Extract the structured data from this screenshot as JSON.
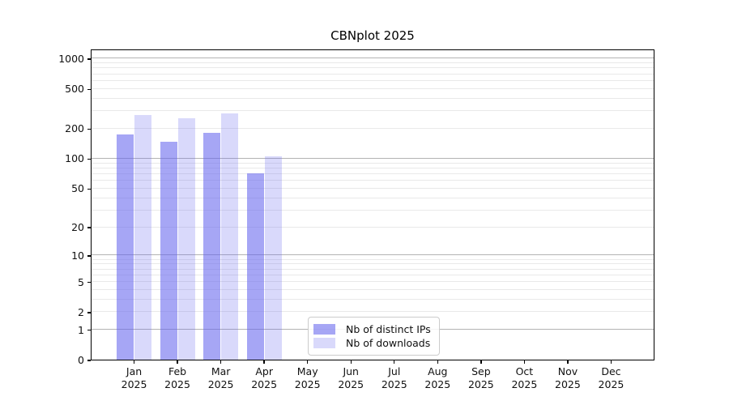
{
  "chart_data": {
    "type": "bar",
    "title": "CBNplot 2025",
    "categories": [
      "Jan",
      "Feb",
      "Mar",
      "Apr",
      "May",
      "Jun",
      "Jul",
      "Aug",
      "Sep",
      "Oct",
      "Nov",
      "Dec"
    ],
    "year_label": "2025",
    "series": [
      {
        "name": "Nb of distinct IPs",
        "color": "rgba(102,102,238,0.58)",
        "values": [
          175,
          148,
          180,
          70,
          null,
          null,
          null,
          null,
          null,
          null,
          null,
          null
        ]
      },
      {
        "name": "Nb of downloads",
        "color": "rgba(102,102,238,0.25)",
        "values": [
          270,
          250,
          280,
          105,
          null,
          null,
          null,
          null,
          null,
          null,
          null,
          null
        ]
      }
    ],
    "yscale": "log1p",
    "ylim": [
      0,
      1230
    ],
    "yticks": [
      0,
      1,
      2,
      5,
      10,
      20,
      50,
      100,
      200,
      500,
      1000
    ],
    "grid": {
      "major_values": [
        1,
        10,
        100,
        1000
      ],
      "minor_values": [
        2,
        3,
        4,
        5,
        6,
        7,
        8,
        9,
        20,
        30,
        40,
        50,
        60,
        70,
        80,
        90,
        200,
        300,
        400,
        500,
        600,
        700,
        800,
        900
      ],
      "major_color": "#b3b3b3",
      "minor_color": "#e9e9e9"
    },
    "legend_position": "lower center",
    "axis_color": "#000000",
    "background": "#ffffff"
  }
}
